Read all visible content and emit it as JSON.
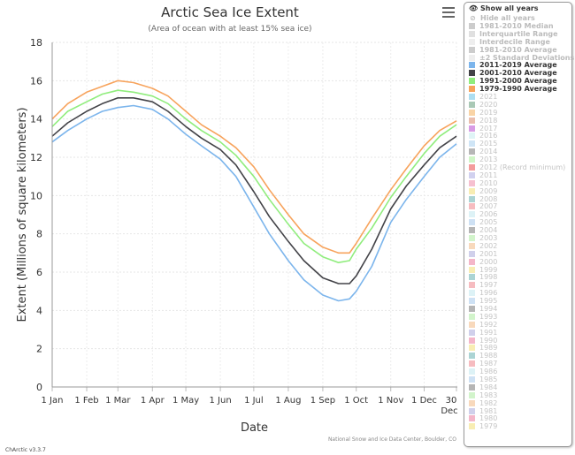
{
  "chart_header": {
    "title": "Arctic Sea Ice Extent",
    "subtitle": "(Area of ocean with at least 15% sea ice)",
    "menu_icon": "hamburger-menu-icon"
  },
  "footer": {
    "version": "ChArctic v3.3.7",
    "credit": "National Snow and Ice Data Center, Boulder, CO"
  },
  "legend": {
    "show_all": "Show all years",
    "hide_all": "Hide all years",
    "show_icon": "eye-icon",
    "hide_icon": "eye-slash-icon",
    "items": [
      {
        "label": "1981-2010 Median",
        "color": "#cccccc",
        "state": "inactive"
      },
      {
        "label": "Interquartile Range",
        "color": "#e0e0e0",
        "state": "inactive"
      },
      {
        "label": "Interdecile Range",
        "color": "#eeeeee",
        "state": "inactive"
      },
      {
        "label": "1981-2010 Average",
        "color": "#cccccc",
        "state": "inactive"
      },
      {
        "label": "±2 Standard Deviations",
        "color": "#eeeeee",
        "state": "inactive"
      },
      {
        "label": "2011-2019 Average",
        "color": "#7cb5ec",
        "state": "active"
      },
      {
        "label": "2001-2010 Average",
        "color": "#434348",
        "state": "active"
      },
      {
        "label": "1991-2000 Average",
        "color": "#90ed7d",
        "state": "active"
      },
      {
        "label": "1979-1990 Average",
        "color": "#f7a35c",
        "state": "active"
      },
      {
        "label": "2021",
        "color": "#9fd8ef",
        "state": "year"
      },
      {
        "label": "2020",
        "color": "#9bbfa9",
        "state": "year"
      },
      {
        "label": "2019",
        "color": "#f8cc96",
        "state": "year"
      },
      {
        "label": "2018",
        "color": "#e6b3a0",
        "state": "year"
      },
      {
        "label": "2017",
        "color": "#d18be0",
        "state": "year"
      },
      {
        "label": "2016",
        "color": "#d9f2f5",
        "state": "year"
      },
      {
        "label": "2015",
        "color": "#c7e0f4",
        "state": "year"
      },
      {
        "label": "2014",
        "color": "#aaaaaa",
        "state": "year"
      },
      {
        "label": "2013",
        "color": "#c8f5bd",
        "state": "year"
      },
      {
        "label": "2012 (Record minimum)",
        "color": "#f28b8b",
        "state": "year"
      },
      {
        "label": "2011",
        "color": "#c9c9ec",
        "state": "year"
      },
      {
        "label": "2010",
        "color": "#f5b5c8",
        "state": "year"
      },
      {
        "label": "2009",
        "color": "#f7eaa6",
        "state": "year"
      },
      {
        "label": "2008",
        "color": "#9ccccc",
        "state": "year"
      },
      {
        "label": "2007",
        "color": "#f5b0b5",
        "state": "year"
      },
      {
        "label": "2006",
        "color": "#d7f0f5",
        "state": "year"
      },
      {
        "label": "2005",
        "color": "#c5dcf2",
        "state": "year"
      },
      {
        "label": "2004",
        "color": "#a8a8a8",
        "state": "year"
      },
      {
        "label": "2003",
        "color": "#caf2c2",
        "state": "year"
      },
      {
        "label": "2002",
        "color": "#f7d2b0",
        "state": "year"
      },
      {
        "label": "2001",
        "color": "#c8c8e8",
        "state": "year"
      },
      {
        "label": "2000",
        "color": "#f2a9c0",
        "state": "year"
      },
      {
        "label": "1999",
        "color": "#f7eaa6",
        "state": "year"
      },
      {
        "label": "1998",
        "color": "#9ccccc",
        "state": "year"
      },
      {
        "label": "1997",
        "color": "#f5b0b5",
        "state": "year"
      },
      {
        "label": "1996",
        "color": "#d7f0f5",
        "state": "year"
      },
      {
        "label": "1995",
        "color": "#c5dcf2",
        "state": "year"
      },
      {
        "label": "1994",
        "color": "#a8a8a8",
        "state": "year"
      },
      {
        "label": "1993",
        "color": "#caf2c2",
        "state": "year"
      },
      {
        "label": "1992",
        "color": "#f7d2b0",
        "state": "year"
      },
      {
        "label": "1991",
        "color": "#c8c8e8",
        "state": "year"
      },
      {
        "label": "1990",
        "color": "#f2a9c0",
        "state": "year"
      },
      {
        "label": "1989",
        "color": "#f7eaa6",
        "state": "year"
      },
      {
        "label": "1988",
        "color": "#9ccccc",
        "state": "year"
      },
      {
        "label": "1987",
        "color": "#f5b0b5",
        "state": "year"
      },
      {
        "label": "1986",
        "color": "#d7f0f5",
        "state": "year"
      },
      {
        "label": "1985",
        "color": "#c5dcf2",
        "state": "year"
      },
      {
        "label": "1984",
        "color": "#a8a8a8",
        "state": "year"
      },
      {
        "label": "1983",
        "color": "#caf2c2",
        "state": "year"
      },
      {
        "label": "1982",
        "color": "#f7d2b0",
        "state": "year"
      },
      {
        "label": "1981",
        "color": "#c8c8e8",
        "state": "year"
      },
      {
        "label": "1980",
        "color": "#f2a9c0",
        "state": "year"
      },
      {
        "label": "1979",
        "color": "#f7eaa6",
        "state": "year"
      }
    ]
  },
  "chart_data": {
    "type": "line",
    "title": "Arctic Sea Ice Extent",
    "subtitle": "(Area of ocean with at least 15% sea ice)",
    "xlabel": "Date",
    "ylabel": "Extent (Millions of square kilometers)",
    "ylim": [
      0,
      18
    ],
    "yticks": [
      0,
      2,
      4,
      6,
      8,
      10,
      12,
      14,
      16,
      18
    ],
    "xticks": [
      "1 Jan",
      "1 Feb",
      "1 Mar",
      "1 Apr",
      "1 May",
      "1 Jun",
      "1 Jul",
      "1 Aug",
      "1 Sep",
      "1 Oct",
      "1 Nov",
      "1 Dec",
      "30 Dec"
    ],
    "xtick_days": [
      1,
      32,
      60,
      91,
      121,
      152,
      182,
      213,
      244,
      274,
      305,
      335,
      364
    ],
    "grid": true,
    "legend_position": "right",
    "x": [
      1,
      15,
      32,
      46,
      60,
      74,
      91,
      105,
      121,
      135,
      152,
      166,
      182,
      196,
      213,
      227,
      244,
      258,
      268,
      274,
      288,
      305,
      319,
      335,
      349,
      364
    ],
    "series": [
      {
        "name": "2011-2019 Average",
        "color": "#7cb5ec",
        "values": [
          12.8,
          13.4,
          14.0,
          14.4,
          14.6,
          14.7,
          14.5,
          14.0,
          13.2,
          12.6,
          11.9,
          11.0,
          9.4,
          8.0,
          6.6,
          5.6,
          4.8,
          4.5,
          4.6,
          5.0,
          6.3,
          8.6,
          9.8,
          11.0,
          12.0,
          12.7
        ]
      },
      {
        "name": "2001-2010 Average",
        "color": "#434348",
        "values": [
          13.1,
          13.8,
          14.4,
          14.8,
          15.1,
          15.1,
          14.9,
          14.4,
          13.6,
          13.0,
          12.4,
          11.6,
          10.2,
          8.9,
          7.6,
          6.6,
          5.7,
          5.4,
          5.4,
          5.8,
          7.2,
          9.3,
          10.5,
          11.6,
          12.5,
          13.1
        ]
      },
      {
        "name": "1991-2000 Average",
        "color": "#90ed7d",
        "values": [
          13.6,
          14.4,
          14.9,
          15.3,
          15.5,
          15.4,
          15.2,
          14.8,
          14.0,
          13.4,
          12.8,
          12.1,
          11.0,
          9.8,
          8.5,
          7.5,
          6.8,
          6.5,
          6.6,
          7.2,
          8.3,
          9.9,
          11.0,
          12.2,
          13.1,
          13.7
        ]
      },
      {
        "name": "1979-1990 Average",
        "color": "#f7a35c",
        "values": [
          14.0,
          14.8,
          15.4,
          15.7,
          16.0,
          15.9,
          15.6,
          15.2,
          14.4,
          13.7,
          13.1,
          12.5,
          11.5,
          10.3,
          9.0,
          8.0,
          7.3,
          7.0,
          7.0,
          7.5,
          8.8,
          10.3,
          11.4,
          12.6,
          13.4,
          13.9
        ]
      }
    ]
  }
}
